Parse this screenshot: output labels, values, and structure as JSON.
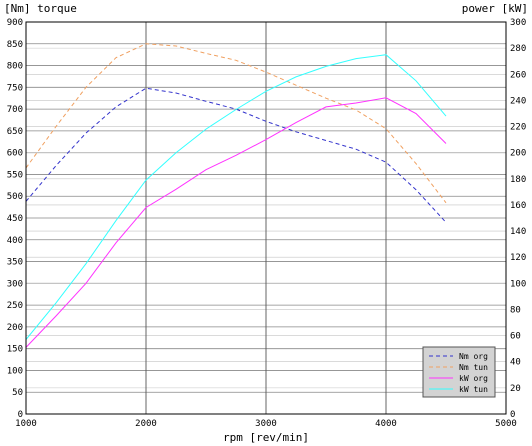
{
  "chart_data": {
    "type": "line",
    "header_left": "[Nm] torque",
    "header_right": "power [kW]",
    "xlabel": "rpm [rev/min]",
    "xlim": [
      1000,
      5000
    ],
    "x_ticks": [
      "1000",
      "2000",
      "3000",
      "4000",
      "5000"
    ],
    "x_tick_values": [
      1000,
      2000,
      3000,
      4000,
      5000
    ],
    "ylim_left": [
      0,
      900
    ],
    "y_ticks_left": [
      "0",
      "50",
      "100",
      "150",
      "200",
      "250",
      "300",
      "350",
      "400",
      "450",
      "500",
      "550",
      "600",
      "650",
      "700",
      "750",
      "800",
      "850",
      "900"
    ],
    "y_tick_values_left": [
      0,
      50,
      100,
      150,
      200,
      250,
      300,
      350,
      400,
      450,
      500,
      550,
      600,
      650,
      700,
      750,
      800,
      850,
      900
    ],
    "ylim_right": [
      0,
      300
    ],
    "y_ticks_right": [
      "0",
      "20",
      "40",
      "60",
      "80",
      "100",
      "120",
      "140",
      "160",
      "180",
      "200",
      "220",
      "240",
      "260",
      "280",
      "300"
    ],
    "y_tick_values_right": [
      0,
      20,
      40,
      60,
      80,
      100,
      120,
      140,
      160,
      180,
      200,
      220,
      240,
      260,
      280,
      300
    ],
    "grid": true,
    "legend_position": "bottom-right",
    "series": [
      {
        "name": "Nm org",
        "axis": "left",
        "color": "#3333cc",
        "dash": true,
        "x": [
          1000,
          1250,
          1500,
          1750,
          2000,
          2250,
          2500,
          2750,
          3000,
          3250,
          3500,
          3750,
          4000,
          4250,
          4500
        ],
        "y": [
          488,
          570,
          645,
          705,
          748,
          737,
          718,
          700,
          672,
          648,
          628,
          608,
          578,
          515,
          440
        ]
      },
      {
        "name": "Nm tun",
        "axis": "left",
        "color": "#f0a060",
        "dash": true,
        "x": [
          1000,
          1250,
          1500,
          1750,
          2000,
          2250,
          2500,
          2750,
          3000,
          3250,
          3500,
          3750,
          4000,
          4250,
          4500
        ],
        "y": [
          565,
          660,
          750,
          818,
          850,
          845,
          828,
          812,
          785,
          755,
          725,
          698,
          655,
          575,
          485
        ]
      },
      {
        "name": "kW org",
        "axis": "right",
        "color": "#ff33ff",
        "dash": false,
        "x": [
          1000,
          1250,
          1500,
          1750,
          2000,
          2250,
          2500,
          2750,
          3000,
          3250,
          3500,
          3750,
          4000,
          4250,
          4500
        ],
        "y": [
          51,
          75,
          100,
          131,
          158,
          172,
          187,
          198,
          210,
          223,
          235,
          238,
          242,
          230,
          207
        ]
      },
      {
        "name": "kW tun",
        "axis": "right",
        "color": "#33ffff",
        "dash": false,
        "x": [
          1000,
          1250,
          1500,
          1750,
          2000,
          2250,
          2500,
          2750,
          3000,
          3250,
          3500,
          3750,
          4000,
          4250,
          4500
        ],
        "y": [
          57,
          85,
          115,
          148,
          179,
          200,
          218,
          233,
          247,
          258,
          266,
          272,
          275,
          255,
          228
        ]
      }
    ]
  }
}
